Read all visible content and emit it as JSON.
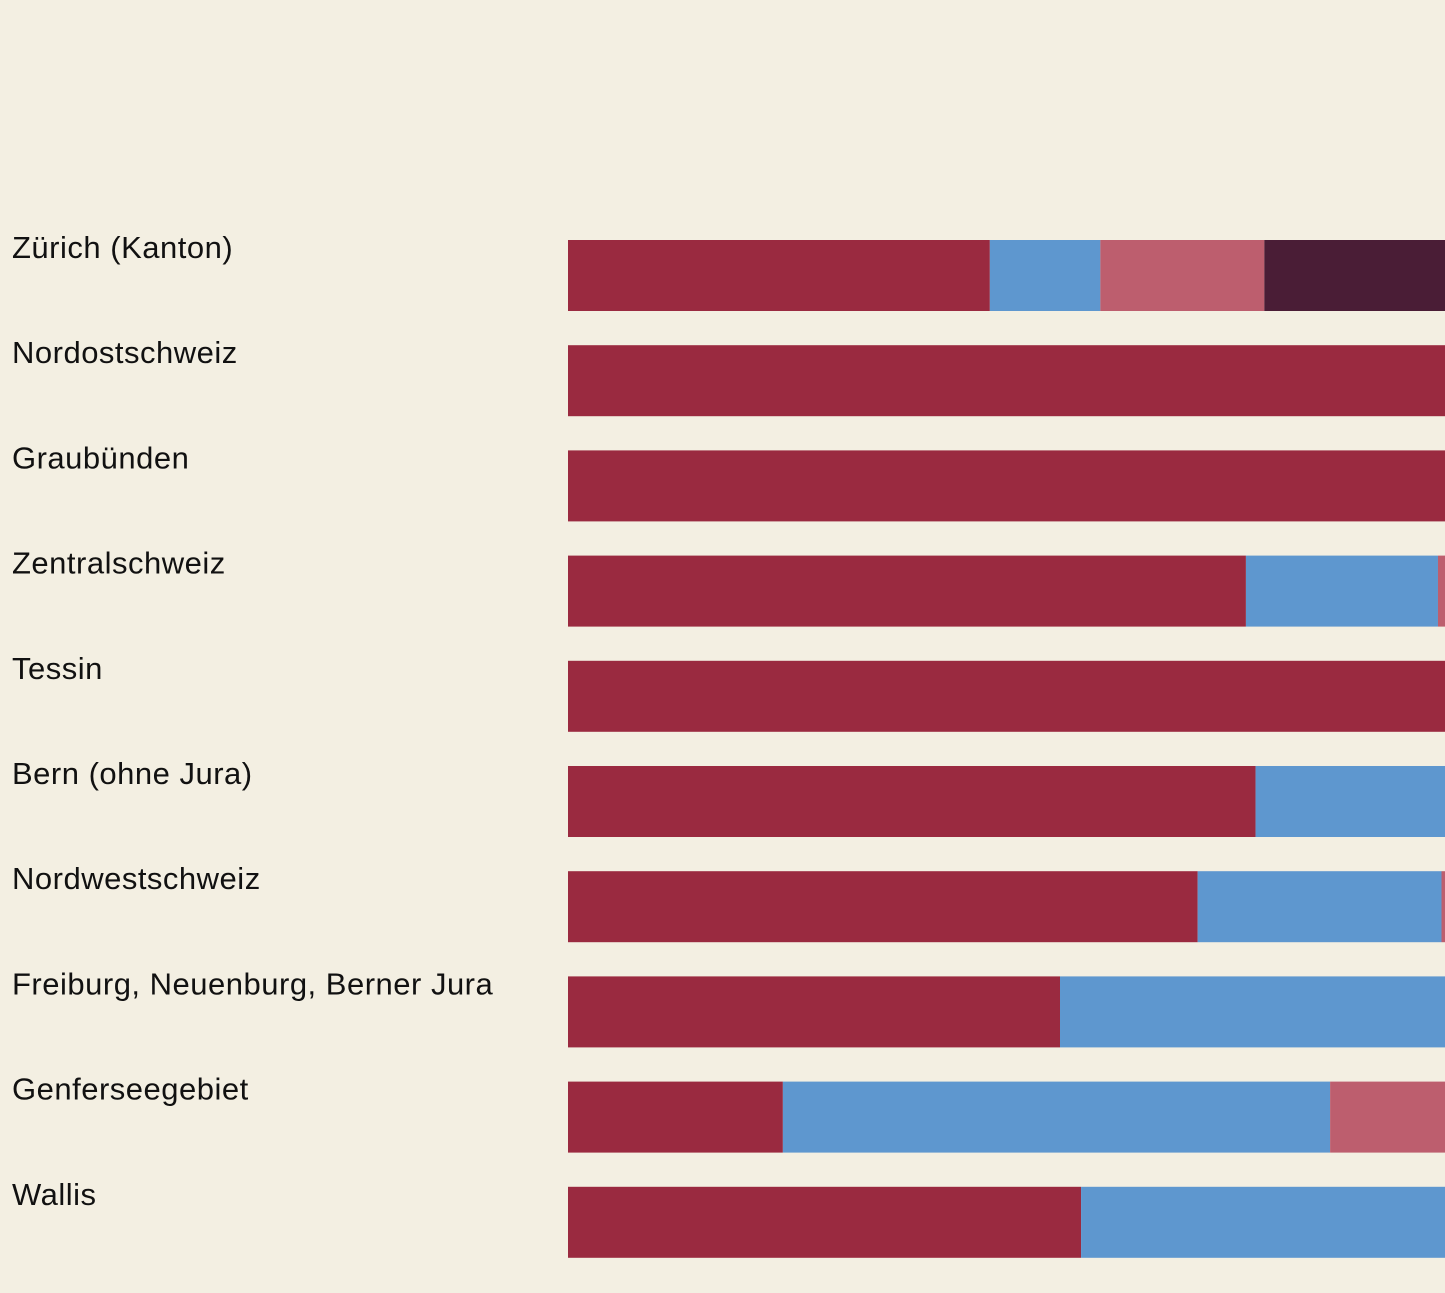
{
  "chart_data": {
    "type": "bar",
    "orientation": "horizontal",
    "stacked": true,
    "percent": true,
    "title": "",
    "xlabel": "",
    "ylabel": "",
    "xlim": [
      0,
      100
    ],
    "grid": false,
    "legend": "none",
    "categories": [
      "Zürich (Kanton)",
      "Nordostschweiz",
      "Graubünden",
      "Zentralschweiz",
      "Tessin",
      "Bern (ohne Jura)",
      "Nordwestschweiz",
      "Freiburg, Neuenburg, Berner Jura",
      "Genferseegebiet",
      "Wallis"
    ],
    "series": [
      {
        "color": "#9a2a40",
        "values": [
          48.1,
          100,
          100,
          77.3,
          100,
          78.4,
          71.8,
          56.1,
          24.5,
          58.5
        ]
      },
      {
        "color": "#5e97cf",
        "values": [
          12.6,
          0,
          0,
          21.9,
          0,
          21.6,
          27.8,
          43.9,
          62.4,
          41.5
        ]
      },
      {
        "color": "#bd5e6e",
        "values": [
          18.7,
          0,
          0,
          0.8,
          0,
          0,
          0.4,
          0,
          13.1,
          0
        ]
      },
      {
        "color": "#4a1d36",
        "values": [
          20.6,
          0,
          0,
          0,
          0,
          0,
          0,
          0,
          0,
          0
        ]
      }
    ]
  }
}
